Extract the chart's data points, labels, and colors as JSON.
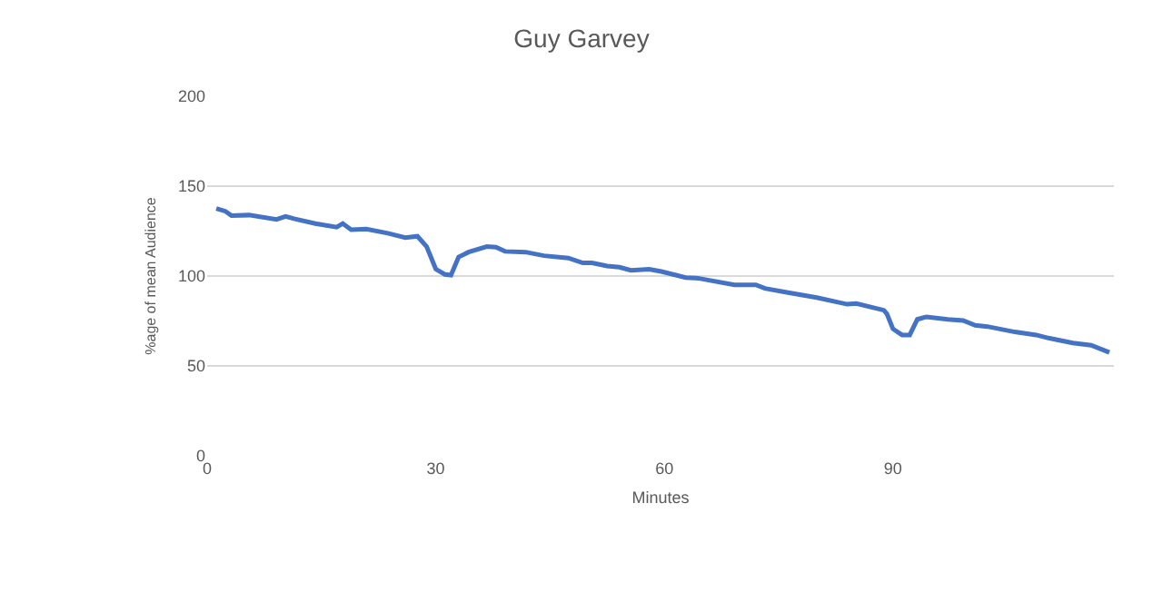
{
  "chart_data": {
    "type": "line",
    "title": "Guy Garvey",
    "xlabel": "Minutes",
    "ylabel": "%age of mean Audience",
    "x": [
      1.2,
      2.4,
      3.2,
      5.5,
      9.1,
      10.3,
      11.4,
      14.2,
      17,
      17.8,
      18.9,
      20.9,
      23.7,
      26,
      27.6,
      28.8,
      30,
      31.2,
      32,
      33,
      34.3,
      36.7,
      37.9,
      39.1,
      41.8,
      44.2,
      47.4,
      49.3,
      50.5,
      52.5,
      54.1,
      55.6,
      58,
      59.6,
      62.8,
      64.4,
      69.2,
      72,
      73.2,
      76.4,
      80,
      84,
      85.2,
      88.8,
      89.2,
      90,
      91.2,
      92.2,
      93.2,
      94.4,
      97.2,
      99.2,
      100.8,
      102.4,
      106,
      108.8,
      110.4,
      113.6,
      116,
      118.4
    ],
    "series": [
      {
        "color": "#4472c4",
        "values": [
          137.6,
          136,
          133.6,
          133.9,
          131.5,
          133.2,
          131.9,
          129.2,
          127.2,
          129.2,
          125.8,
          126.1,
          123.8,
          121.4,
          122.1,
          116.4,
          103.9,
          100.9,
          100.5,
          110.6,
          113.3,
          116.4,
          116,
          113.7,
          113.3,
          111.3,
          110,
          107.3,
          107.3,
          105.6,
          104.9,
          103.2,
          103.8,
          102.5,
          99.1,
          98.8,
          95.1,
          95.1,
          93.1,
          90.7,
          88,
          84.3,
          84.7,
          81,
          79,
          70.6,
          67.2,
          67.2,
          75.9,
          77.3,
          75.9,
          75.3,
          72.6,
          71.9,
          68.9,
          67.2,
          65.5,
          62.8,
          61.5,
          57.5
        ]
      }
    ],
    "xlim": [
      0,
      119
    ],
    "xticks": [
      0,
      30,
      60,
      90
    ],
    "ylim": [
      0,
      200
    ],
    "yticks": [
      0,
      50,
      100,
      150,
      200
    ],
    "grid": "y",
    "legend": false,
    "marker": "none",
    "line_style": "solid"
  }
}
